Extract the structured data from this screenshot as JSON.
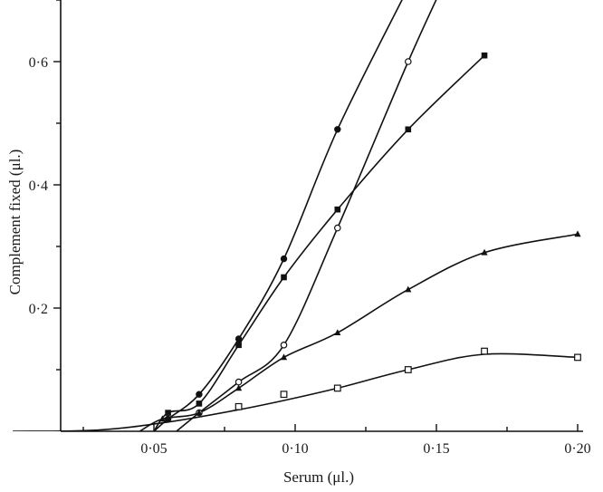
{
  "chart_data": {
    "type": "line",
    "title": "",
    "xlabel": "Serum (μl.)",
    "ylabel": "Complement fixed (μl.)",
    "xlim": [
      0,
      0.2
    ],
    "ylim": [
      0,
      0.75
    ],
    "x_ticks": [
      {
        "value": 0.05,
        "label": "0·05"
      },
      {
        "value": 0.1,
        "label": "0·10"
      },
      {
        "value": 0.15,
        "label": "0·15"
      },
      {
        "value": 0.2,
        "label": "0·20"
      }
    ],
    "y_ticks": [
      {
        "value": 0.2,
        "label": "0·2"
      },
      {
        "value": 0.4,
        "label": "0·4"
      },
      {
        "value": 0.6,
        "label": "0·6"
      }
    ],
    "minor_x_ticks": [
      0.025,
      0.075,
      0.125,
      0.175
    ],
    "minor_y_ticks": [
      0.1,
      0.3,
      0.5,
      0.7
    ],
    "grid": false,
    "legend": "none",
    "series": [
      {
        "marker": "filled-circle",
        "points": [
          [
            0.055,
            0.02
          ],
          [
            0.066,
            0.06
          ],
          [
            0.08,
            0.15
          ],
          [
            0.096,
            0.28
          ],
          [
            0.115,
            0.49
          ],
          [
            0.14,
            0.72
          ]
        ],
        "curve": [
          [
            0.05,
            0.0
          ],
          [
            0.055,
            0.02
          ],
          [
            0.066,
            0.06
          ],
          [
            0.08,
            0.15
          ],
          [
            0.096,
            0.28
          ],
          [
            0.115,
            0.49
          ],
          [
            0.14,
            0.72
          ],
          [
            0.143,
            0.75
          ]
        ]
      },
      {
        "marker": "open-circle",
        "points": [
          [
            0.066,
            0.03
          ],
          [
            0.08,
            0.08
          ],
          [
            0.096,
            0.14
          ],
          [
            0.115,
            0.33
          ],
          [
            0.14,
            0.6
          ]
        ],
        "curve": [
          [
            0.058,
            0.0
          ],
          [
            0.066,
            0.03
          ],
          [
            0.08,
            0.08
          ],
          [
            0.096,
            0.14
          ],
          [
            0.115,
            0.33
          ],
          [
            0.14,
            0.6
          ],
          [
            0.155,
            0.75
          ]
        ]
      },
      {
        "marker": "filled-square",
        "points": [
          [
            0.055,
            0.03
          ],
          [
            0.066,
            0.045
          ],
          [
            0.08,
            0.14
          ],
          [
            0.096,
            0.25
          ],
          [
            0.115,
            0.36
          ],
          [
            0.14,
            0.49
          ],
          [
            0.167,
            0.61
          ]
        ],
        "curve": [
          [
            0.05,
            0.0
          ],
          [
            0.055,
            0.03
          ],
          [
            0.066,
            0.045
          ],
          [
            0.08,
            0.14
          ],
          [
            0.096,
            0.25
          ],
          [
            0.115,
            0.36
          ],
          [
            0.14,
            0.49
          ],
          [
            0.167,
            0.61
          ]
        ]
      },
      {
        "marker": "filled-triangle",
        "points": [
          [
            0.053,
            0.02
          ],
          [
            0.066,
            0.03
          ],
          [
            0.08,
            0.07
          ],
          [
            0.096,
            0.12
          ],
          [
            0.115,
            0.16
          ],
          [
            0.14,
            0.23
          ],
          [
            0.167,
            0.29
          ],
          [
            0.2,
            0.32
          ]
        ],
        "curve": [
          [
            0.045,
            0.0
          ],
          [
            0.053,
            0.02
          ],
          [
            0.066,
            0.03
          ],
          [
            0.08,
            0.07
          ],
          [
            0.096,
            0.12
          ],
          [
            0.115,
            0.16
          ],
          [
            0.14,
            0.23
          ],
          [
            0.167,
            0.29
          ],
          [
            0.2,
            0.32
          ]
        ]
      },
      {
        "marker": "open-square",
        "points": [
          [
            0.08,
            0.04
          ],
          [
            0.096,
            0.06
          ],
          [
            0.115,
            0.07
          ],
          [
            0.14,
            0.1
          ],
          [
            0.167,
            0.13
          ],
          [
            0.2,
            0.12
          ]
        ],
        "curve": [
          [
            0.0,
            0.0
          ],
          [
            0.03,
            0.002
          ],
          [
            0.055,
            0.015
          ],
          [
            0.08,
            0.035
          ],
          [
            0.096,
            0.05
          ],
          [
            0.115,
            0.07
          ],
          [
            0.14,
            0.1
          ],
          [
            0.167,
            0.125
          ],
          [
            0.2,
            0.12
          ]
        ]
      }
    ]
  }
}
